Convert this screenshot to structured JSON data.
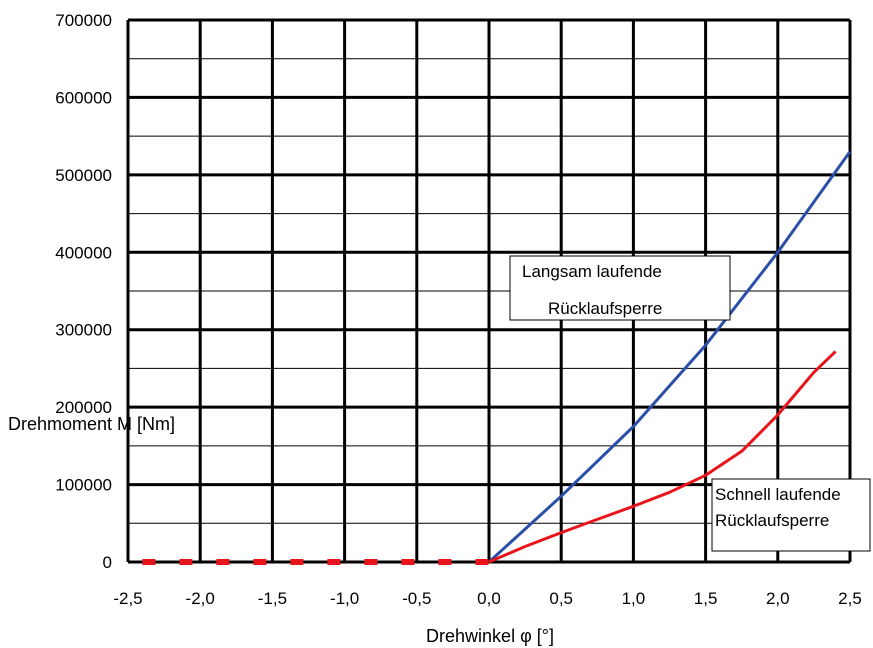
{
  "chart_data": {
    "type": "line",
    "xlabel": "Drehwinkel  φ  [°]",
    "ylabel": "Drehmoment  M  [Nm]",
    "xlim": [
      -2.5,
      2.5
    ],
    "ylim": [
      0,
      700000
    ],
    "x_ticks": [
      "-2,5",
      "-2,0",
      "-1,5",
      "-1,0",
      "-0,5",
      "0,0",
      "0,5",
      "1,0",
      "1,5",
      "2,0",
      "2,5"
    ],
    "y_ticks": [
      "0",
      "100000",
      "200000",
      "300000",
      "400000",
      "500000",
      "600000",
      "700000"
    ],
    "grid": true,
    "series": [
      {
        "name": "Langsam laufende Rücklaufsperre",
        "color": "#2b4fa8",
        "style": "solid",
        "x": [
          0.0,
          0.5,
          1.0,
          1.5,
          2.0,
          2.5
        ],
        "y": [
          0,
          85000,
          175000,
          280000,
          400000,
          530000
        ]
      },
      {
        "name": "Schnell laufende Rücklaufsperre",
        "color": "#e8141c",
        "style": "solid",
        "x": [
          0.0,
          0.25,
          0.5,
          0.75,
          1.0,
          1.25,
          1.5,
          1.75,
          2.0,
          2.25,
          2.4
        ],
        "y": [
          0,
          20000,
          38000,
          55000,
          72000,
          90000,
          112000,
          143000,
          190000,
          245000,
          272000
        ]
      },
      {
        "name": "",
        "color": "#e8141c",
        "style": "dashed",
        "x": [
          -2.4,
          0.0
        ],
        "y": [
          0,
          0
        ]
      }
    ],
    "annotations": [
      {
        "lines": [
          "Langsam laufende",
          "Rücklaufsperre"
        ],
        "series": 0
      },
      {
        "lines": [
          "Schnell  laufende",
          "Rücklaufsperre"
        ],
        "series": 1
      }
    ]
  }
}
